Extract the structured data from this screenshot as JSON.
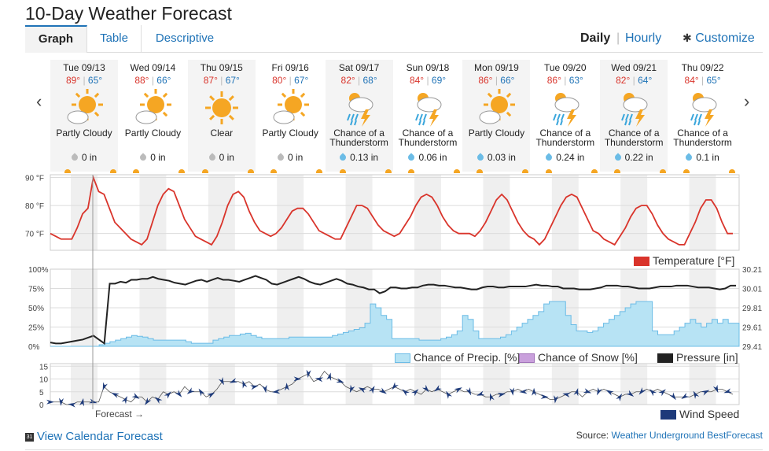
{
  "page_title": "10-Day Weather Forecast",
  "tabs": [
    {
      "label": "Graph"
    },
    {
      "label": "Table"
    },
    {
      "label": "Descriptive"
    }
  ],
  "view_toggle": {
    "daily": "Daily",
    "hourly": "Hourly",
    "customize": "Customize"
  },
  "days": [
    {
      "date": "Tue 09/13",
      "hi": "89°",
      "lo": "65°",
      "cond_line1": "Partly Cloudy",
      "cond_line2": "",
      "icon": "partly-cloudy-icon",
      "precip": "0 in"
    },
    {
      "date": "Wed 09/14",
      "hi": "88°",
      "lo": "66°",
      "cond_line1": "Partly Cloudy",
      "cond_line2": "",
      "icon": "partly-cloudy-icon",
      "precip": "0 in"
    },
    {
      "date": "Thu 09/15",
      "hi": "87°",
      "lo": "67°",
      "cond_line1": "Clear",
      "cond_line2": "",
      "icon": "clear-icon",
      "precip": "0 in"
    },
    {
      "date": "Fri 09/16",
      "hi": "80°",
      "lo": "67°",
      "cond_line1": "Partly Cloudy",
      "cond_line2": "",
      "icon": "partly-cloudy-icon",
      "precip": "0 in"
    },
    {
      "date": "Sat 09/17",
      "hi": "82°",
      "lo": "68°",
      "cond_line1": "Chance of a",
      "cond_line2": "Thunderstorm",
      "icon": "thunderstorm-icon",
      "precip": "0.13 in"
    },
    {
      "date": "Sun 09/18",
      "hi": "84°",
      "lo": "69°",
      "cond_line1": "Chance of a",
      "cond_line2": "Thunderstorm",
      "icon": "thunderstorm-icon",
      "precip": "0.06 in"
    },
    {
      "date": "Mon 09/19",
      "hi": "86°",
      "lo": "66°",
      "cond_line1": "Partly Cloudy",
      "cond_line2": "",
      "icon": "partly-cloudy-icon",
      "precip": "0.03 in"
    },
    {
      "date": "Tue 09/20",
      "hi": "86°",
      "lo": "63°",
      "cond_line1": "Chance of a",
      "cond_line2": "Thunderstorm",
      "icon": "thunderstorm-icon",
      "precip": "0.24 in"
    },
    {
      "date": "Wed 09/21",
      "hi": "82°",
      "lo": "64°",
      "cond_line1": "Chance of a",
      "cond_line2": "Thunderstorm",
      "icon": "thunderstorm-icon",
      "precip": "0.22 in"
    },
    {
      "date": "Thu 09/22",
      "hi": "84°",
      "lo": "65°",
      "cond_line1": "Chance of a",
      "cond_line2": "Thunderstorm",
      "icon": "thunderstorm-icon",
      "precip": "0.1 in"
    }
  ],
  "legends": {
    "temperature": "Temperature [°F]",
    "precip": "Chance of Precip. [%]",
    "snow": "Chance of Snow [%]",
    "pressure": "Pressure [in]",
    "wind": "Wind Speed"
  },
  "forecast_marker": "Forecast →",
  "footer": {
    "calendar_link": "View Calendar Forecast",
    "source_label": "Source: ",
    "source_link": "Weather Underground BestForecast"
  },
  "colors": {
    "temperature": "#d9342b",
    "precip_fill": "#b7e3f4",
    "precip_line": "#6bbce6",
    "pressure": "#222222",
    "wind": "#1d3a7a",
    "snow": "#c9a0dc",
    "accent": "#1f73b7"
  },
  "chart_data": [
    {
      "type": "line",
      "name": "temperature",
      "ylabel": "",
      "y_ticks": [
        "90 °F",
        "80 °F",
        "70 °F"
      ],
      "y_tick_values": [
        90,
        80,
        70
      ],
      "ylim": [
        64,
        91
      ],
      "series": [
        {
          "name": "Temperature [°F]",
          "values": [
            70,
            69,
            68,
            68,
            68,
            72,
            77,
            79,
            90,
            85,
            84,
            79,
            74,
            72,
            70,
            68,
            67,
            66,
            68,
            74,
            80,
            84,
            86,
            85,
            80,
            75,
            72,
            69,
            68,
            67,
            66,
            69,
            74,
            80,
            84,
            85,
            83,
            78,
            74,
            71,
            70,
            69,
            70,
            72,
            75,
            78,
            79,
            79,
            77,
            74,
            71,
            70,
            69,
            68,
            68,
            72,
            76,
            80,
            80,
            79,
            76,
            73,
            71,
            70,
            69,
            70,
            73,
            76,
            80,
            83,
            84,
            83,
            80,
            76,
            73,
            71,
            70,
            70,
            70,
            69,
            71,
            74,
            78,
            82,
            84,
            82,
            78,
            74,
            71,
            69,
            68,
            66,
            68,
            72,
            76,
            80,
            83,
            84,
            83,
            79,
            75,
            71,
            70,
            68,
            67,
            66,
            69,
            72,
            76,
            79,
            80,
            80,
            77,
            73,
            70,
            68,
            67,
            66,
            66,
            70,
            74,
            79,
            82,
            82,
            79,
            74,
            70,
            70
          ]
        }
      ]
    },
    {
      "type": "area",
      "name": "precip-pressure",
      "y_ticks": [
        "100%",
        "75%",
        "50%",
        "25%",
        "0%"
      ],
      "y_tick_values": [
        100,
        75,
        50,
        25,
        0
      ],
      "y2_ticks": [
        "30.21",
        "30.01",
        "29.81",
        "29.61",
        "29.41"
      ],
      "y2_tick_values": [
        30.21,
        30.01,
        29.81,
        29.61,
        29.41
      ],
      "series": [
        {
          "name": "Chance of Precip. [%]",
          "values": [
            0,
            0,
            0,
            0,
            0,
            0,
            0,
            0,
            0,
            2,
            4,
            6,
            8,
            10,
            12,
            14,
            13,
            12,
            10,
            8,
            8,
            8,
            8,
            8,
            8,
            6,
            4,
            4,
            4,
            4,
            8,
            10,
            12,
            14,
            14,
            16,
            17,
            14,
            12,
            10,
            10,
            10,
            10,
            10,
            12,
            12,
            12,
            12,
            12,
            12,
            12,
            12,
            14,
            16,
            18,
            20,
            22,
            24,
            30,
            55,
            50,
            40,
            35,
            10,
            10,
            10,
            10,
            10,
            8,
            8,
            8,
            8,
            10,
            12,
            15,
            20,
            40,
            35,
            20,
            10,
            10,
            10,
            10,
            12,
            15,
            20,
            25,
            30,
            35,
            40,
            45,
            55,
            58,
            58,
            58,
            40,
            28,
            20,
            20,
            18,
            20,
            25,
            30,
            35,
            40,
            45,
            50,
            55,
            58,
            58,
            58,
            20,
            15,
            15,
            15,
            20,
            25,
            30,
            35,
            30,
            25,
            30,
            35,
            30,
            35,
            30,
            30,
            30
          ]
        },
        {
          "name": "Pressure [in]",
          "values": [
            29.45,
            29.44,
            29.44,
            29.45,
            29.46,
            29.47,
            29.48,
            29.5,
            29.52,
            29.48,
            29.44,
            30.06,
            30.06,
            30.08,
            30.07,
            30.1,
            30.1,
            30.11,
            30.11,
            30.13,
            30.11,
            30.1,
            30.09,
            30.07,
            30.06,
            30.05,
            30.07,
            30.09,
            30.1,
            30.08,
            30.1,
            30.12,
            30.1,
            30.1,
            30.09,
            30.08,
            30.1,
            30.12,
            30.14,
            30.12,
            30.1,
            30.06,
            30.05,
            30.07,
            30.09,
            30.11,
            30.13,
            30.11,
            30.08,
            30.06,
            30.05,
            30.07,
            30.09,
            30.11,
            30.09,
            30.06,
            30.05,
            30.03,
            30.02,
            30.0,
            30.0,
            29.96,
            29.98,
            30.02,
            30.02,
            30.01,
            30.01,
            30.02,
            30.02,
            30.04,
            30.05,
            30.05,
            30.04,
            30.04,
            30.03,
            30.02,
            30.02,
            30.01,
            30.0,
            30.0,
            30.02,
            30.03,
            30.03,
            30.02,
            30.02,
            30.03,
            30.03,
            30.03,
            30.03,
            30.04,
            30.05,
            30.04,
            30.04,
            30.03,
            30.03,
            30.01,
            30.01,
            30.01,
            30.0,
            30.0,
            30.0,
            30.01,
            30.02,
            30.04,
            30.04,
            30.04,
            30.03,
            30.03,
            30.02,
            30.01,
            30.01,
            30.01,
            30.02,
            30.03,
            30.03,
            30.03,
            30.04,
            30.04,
            30.04,
            30.03,
            30.02,
            30.02,
            30.02,
            30.01,
            30.0,
            30.01,
            30.04,
            30.04
          ]
        }
      ]
    },
    {
      "type": "line",
      "name": "wind",
      "y_ticks": [
        "15",
        "10",
        "5",
        "0"
      ],
      "y_tick_values": [
        15,
        10,
        5,
        0
      ],
      "ylim": [
        0,
        16
      ],
      "series": [
        {
          "name": "Wind Speed",
          "values": [
            1,
            1,
            1,
            0,
            0,
            1,
            1,
            1,
            1,
            1,
            7,
            5,
            4,
            3,
            2,
            1,
            3,
            3,
            1,
            3,
            2,
            5,
            4,
            5,
            4,
            7,
            5,
            5,
            5,
            3,
            4,
            6,
            9,
            9,
            9,
            9,
            8,
            9,
            7,
            8,
            6,
            5,
            5,
            6,
            7,
            8,
            10,
            11,
            12,
            9,
            10,
            13,
            11,
            10,
            9,
            7,
            6,
            5,
            6,
            7,
            6,
            6,
            5,
            6,
            7,
            6,
            5,
            6,
            5,
            4,
            6,
            5,
            6,
            5,
            4,
            5,
            6,
            5,
            5,
            4,
            4,
            3,
            3,
            4,
            4,
            5,
            5,
            6,
            5,
            6,
            5,
            4,
            3,
            2,
            2,
            3,
            4,
            5,
            5,
            3,
            5,
            6,
            5,
            6,
            5,
            4,
            3,
            4,
            4,
            5,
            5,
            6,
            5,
            6,
            5,
            4,
            3,
            3,
            3,
            3,
            4,
            5,
            5,
            5,
            6,
            6,
            5,
            4
          ]
        }
      ]
    }
  ]
}
